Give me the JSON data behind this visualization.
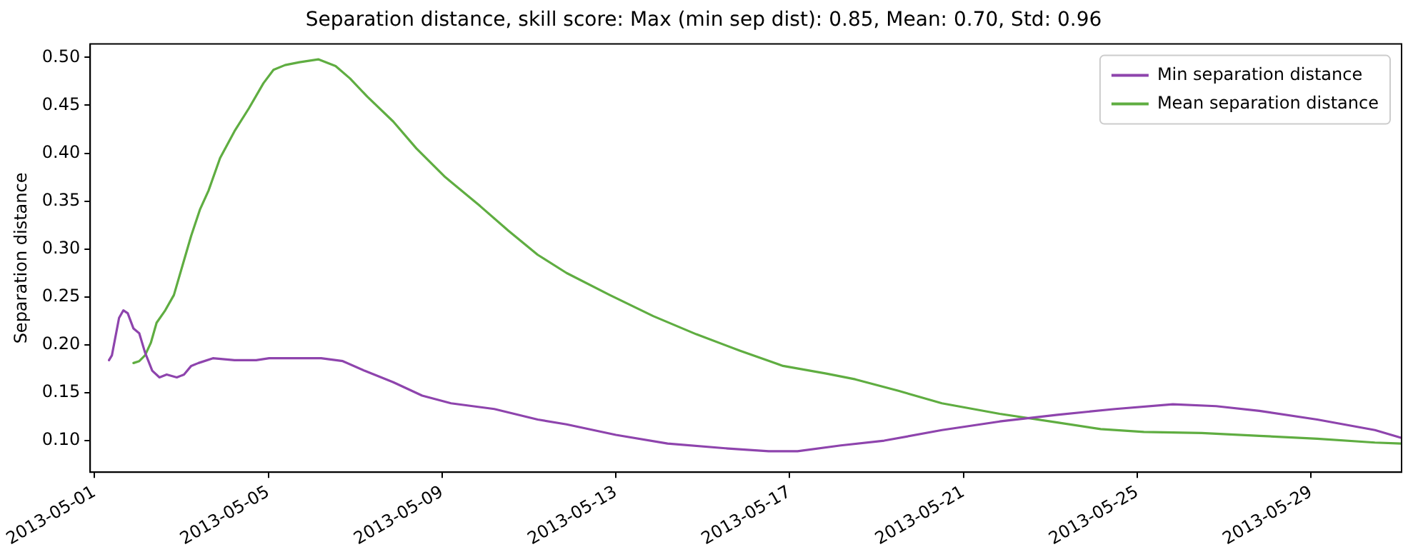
{
  "chart_data": {
    "type": "line",
    "title": "Separation distance, skill score: Max (min sep dist): 0.85, Mean: 0.70, Std: 0.96",
    "ylabel": "Separation distance",
    "xlim": [
      "2013-04-30T21:36",
      "2013-05-31T02:00"
    ],
    "xticks": [
      "2013-05-01",
      "2013-05-05",
      "2013-05-09",
      "2013-05-13",
      "2013-05-17",
      "2013-05-21",
      "2013-05-25",
      "2013-05-29"
    ],
    "ylim": [
      0.067,
      0.514
    ],
    "yticks": [
      {
        "value": 0.1,
        "label": "0.10"
      },
      {
        "value": 0.15,
        "label": "0.15"
      },
      {
        "value": 0.2,
        "label": "0.20"
      },
      {
        "value": 0.25,
        "label": "0.25"
      },
      {
        "value": 0.3,
        "label": "0.30"
      },
      {
        "value": 0.35,
        "label": "0.35"
      },
      {
        "value": 0.4,
        "label": "0.40"
      },
      {
        "value": 0.45,
        "label": "0.45"
      },
      {
        "value": 0.5,
        "label": "0.50"
      }
    ],
    "grid": false,
    "legend": "top right",
    "marker": "none",
    "line_style": "solid",
    "series": [
      {
        "name": "Min separation distance",
        "color": "#8e44ad",
        "x": [
          "2013-05-01T08:00",
          "2013-05-01T09:36",
          "2013-05-01T13:33",
          "2013-05-01T15:57",
          "2013-05-01T18:20",
          "2013-05-01T21:32",
          "2013-05-02T00:43",
          "2013-05-02T03:54",
          "2013-05-02T07:53",
          "2013-05-02T11:53",
          "2013-05-02T15:52",
          "2013-05-02T21:27",
          "2013-05-03T01:26",
          "2013-05-03T05:25",
          "2013-05-03T09:24",
          "2013-05-03T17:23",
          "2013-05-04T05:20",
          "2013-05-04T17:18",
          "2013-05-05T00:29",
          "2013-05-05T13:14",
          "2013-05-06T05:11",
          "2013-05-06T17:08",
          "2013-05-07T05:05",
          "2013-05-07T21:02",
          "2013-05-08T12:59",
          "2013-05-09T04:56",
          "2013-05-10T04:51",
          "2013-05-11T04:47",
          "2013-05-11T20:44",
          "2013-05-13T00:00",
          "2013-05-14T04:33",
          "2013-05-15T12:27",
          "2013-05-16T12:23",
          "2013-05-17T04:20",
          "2013-05-18T04:15",
          "2013-05-19T04:11",
          "2013-05-20T12:05",
          "2013-05-21T20:00",
          "2013-05-23T03:53",
          "2013-05-24T11:46",
          "2013-05-25T19:40",
          "2013-05-26T19:34",
          "2013-05-27T19:30",
          "2013-05-29T03:23",
          "2013-05-30T11:17",
          "2013-05-31T01:40"
        ],
        "values": [
          0.184,
          0.189,
          0.228,
          0.236,
          0.233,
          0.217,
          0.212,
          0.192,
          0.173,
          0.166,
          0.169,
          0.166,
          0.169,
          0.178,
          0.181,
          0.186,
          0.184,
          0.184,
          0.186,
          0.186,
          0.186,
          0.183,
          0.173,
          0.161,
          0.147,
          0.139,
          0.133,
          0.122,
          0.117,
          0.106,
          0.097,
          0.092,
          0.089,
          0.089,
          0.095,
          0.1,
          0.111,
          0.12,
          0.127,
          0.133,
          0.138,
          0.136,
          0.131,
          0.122,
          0.111,
          0.103
        ]
      },
      {
        "name": "Mean separation distance",
        "color": "#5fad41",
        "x": [
          "2013-05-01T21:32",
          "2013-05-02T00:43",
          "2013-05-02T03:54",
          "2013-05-02T07:06",
          "2013-05-02T10:17",
          "2013-05-02T15:04",
          "2013-05-02T19:51",
          "2013-05-03T00:38",
          "2013-05-03T05:25",
          "2013-05-03T10:12",
          "2013-05-03T14:59",
          "2013-05-03T21:22",
          "2013-05-04T05:20",
          "2013-05-04T13:19",
          "2013-05-04T21:17",
          "2013-05-05T02:52",
          "2013-05-05T09:15",
          "2013-05-05T17:13",
          "2013-05-06T03:36",
          "2013-05-06T13:10",
          "2013-05-06T21:08",
          "2013-05-07T06:42",
          "2013-05-07T21:02",
          "2013-05-08T09:48",
          "2013-05-09T01:45",
          "2013-05-09T20:54",
          "2013-05-10T12:42",
          "2013-05-11T04:47",
          "2013-05-11T20:44",
          "2013-05-12T20:37",
          "2013-05-13T20:36",
          "2013-05-14T20:27",
          "2013-05-15T20:24",
          "2013-05-16T20:20",
          "2013-05-17T20:12",
          "2013-05-18T12:13",
          "2013-05-19T12:05",
          "2013-05-20T12:05",
          "2013-05-21T20:00",
          "2013-05-23T03:53",
          "2013-05-24T03:48",
          "2013-05-25T03:40",
          "2013-05-26T11:36",
          "2013-05-27T19:30",
          "2013-05-29T03:23",
          "2013-05-30T11:17",
          "2013-05-31T01:40"
        ],
        "values": [
          0.181,
          0.183,
          0.189,
          0.202,
          0.223,
          0.236,
          0.252,
          0.283,
          0.314,
          0.341,
          0.361,
          0.395,
          0.423,
          0.447,
          0.473,
          0.487,
          0.492,
          0.495,
          0.498,
          0.491,
          0.478,
          0.459,
          0.433,
          0.405,
          0.375,
          0.345,
          0.319,
          0.294,
          0.275,
          0.252,
          0.23,
          0.211,
          0.194,
          0.178,
          0.17,
          0.164,
          0.152,
          0.139,
          0.128,
          0.119,
          0.112,
          0.109,
          0.108,
          0.105,
          0.102,
          0.098,
          0.097
        ]
      }
    ]
  }
}
